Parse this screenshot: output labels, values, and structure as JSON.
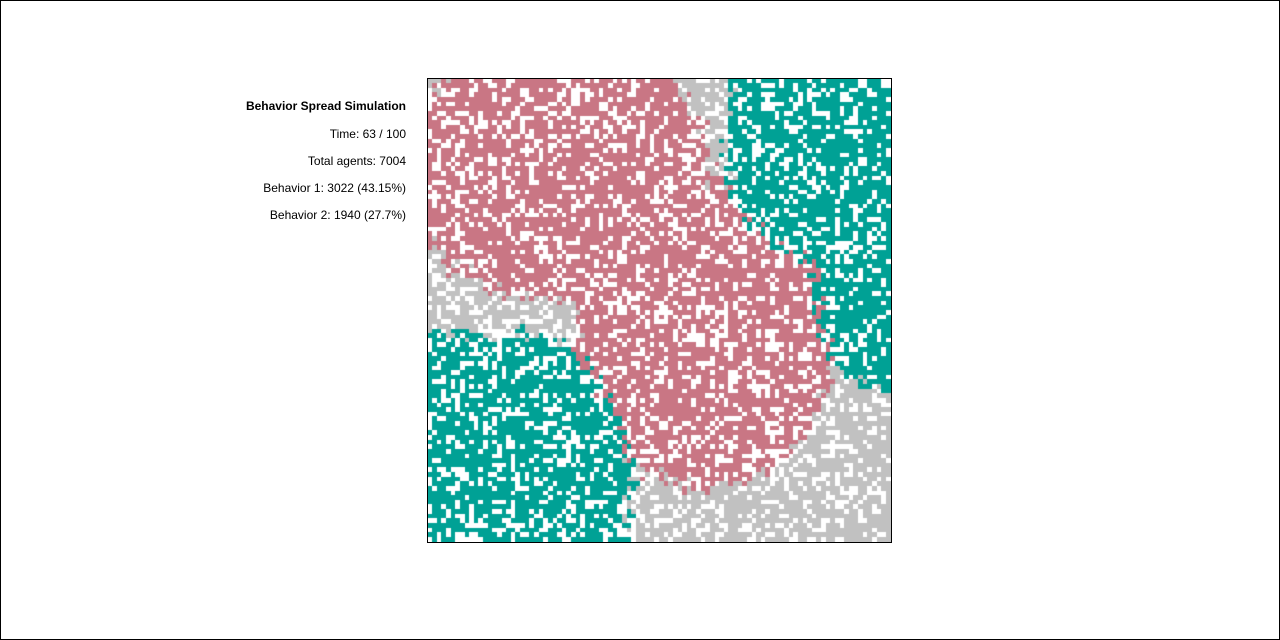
{
  "panel": {
    "title": "Behavior Spread Simulation",
    "time": "Time: 63 / 100",
    "total_agents": "Total agents: 7004",
    "behavior1": "Behavior 1: 3022 (43.15%)",
    "behavior2": "Behavior 2: 1940 (27.7%)"
  },
  "simulation": {
    "time": 63,
    "max_time": 100,
    "total_agents": 7004,
    "behavior1_count": 3022,
    "behavior1_pct": 43.15,
    "behavior2_count": 1940,
    "behavior2_pct": 27.7,
    "grid_size": 100
  },
  "colors": {
    "behavior1": "#c97684",
    "behavior2": "#00a195",
    "neutral": "#c1c1c1",
    "empty": "#ffffff"
  }
}
